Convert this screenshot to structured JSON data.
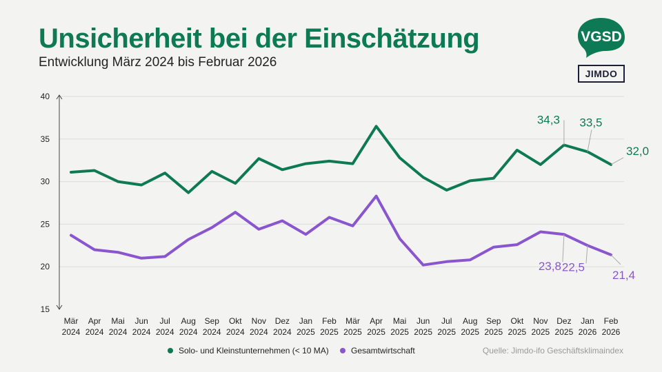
{
  "header": {
    "title": "Unsicherheit bei der Einschätzung",
    "subtitle": "Entwicklung März 2024 bis Februar 2026"
  },
  "logos": {
    "vgsd": "VGSD",
    "jimdo": "JIMDO"
  },
  "source": "Quelle: Jimdo-ifo Geschäftsklimaindex",
  "colors": {
    "green": "#0e7a55",
    "purple": "#8a56d0",
    "background": "#f3f3f1",
    "grid": "#dcdcda"
  },
  "chart_data": {
    "type": "line",
    "title": "Unsicherheit bei der Einschätzung",
    "ylim": [
      15,
      40
    ],
    "yticks": [
      15,
      20,
      25,
      30,
      35,
      40
    ],
    "grid": true,
    "legend": "bottom",
    "categories": [
      [
        "Mär",
        "2024"
      ],
      [
        "Apr",
        "2024"
      ],
      [
        "Mai",
        "2024"
      ],
      [
        "Jun",
        "2024"
      ],
      [
        "Jul",
        "2024"
      ],
      [
        "Aug",
        "2024"
      ],
      [
        "Sep",
        "2024"
      ],
      [
        "Okt",
        "2024"
      ],
      [
        "Nov",
        "2024"
      ],
      [
        "Dez",
        "2024"
      ],
      [
        "Jan",
        "2025"
      ],
      [
        "Feb",
        "2025"
      ],
      [
        "Mär",
        "2025"
      ],
      [
        "Apr",
        "2025"
      ],
      [
        "Mai",
        "2025"
      ],
      [
        "Jun",
        "2025"
      ],
      [
        "Jul",
        "2025"
      ],
      [
        "Aug",
        "2025"
      ],
      [
        "Sep",
        "2025"
      ],
      [
        "Okt",
        "2025"
      ],
      [
        "Nov",
        "2025"
      ],
      [
        "Dez",
        "2025"
      ],
      [
        "Jan",
        "2026"
      ],
      [
        "Feb",
        "2026"
      ]
    ],
    "series": [
      {
        "name": "Solo- und Kleinstunternehmen (< 10 MA)",
        "color": "#0e7a55",
        "values": [
          31.1,
          31.3,
          30.0,
          29.6,
          31.0,
          28.7,
          31.2,
          29.8,
          32.7,
          31.4,
          32.1,
          32.4,
          32.1,
          36.5,
          32.8,
          30.5,
          29.0,
          30.1,
          30.4,
          33.7,
          32.0,
          34.3,
          33.5,
          32.0
        ],
        "labels": [
          {
            "index": 21,
            "text": "34,3"
          },
          {
            "index": 22,
            "text": "33,5"
          },
          {
            "index": 23,
            "text": "32,0"
          }
        ]
      },
      {
        "name": "Gesamtwirtschaft",
        "color": "#8a56d0",
        "values": [
          23.7,
          22.0,
          21.7,
          21.0,
          21.2,
          23.2,
          24.6,
          26.4,
          24.4,
          25.4,
          23.8,
          25.8,
          24.8,
          28.3,
          23.3,
          20.2,
          20.6,
          20.8,
          22.3,
          22.6,
          24.1,
          23.8,
          22.5,
          21.4
        ],
        "labels": [
          {
            "index": 21,
            "text": "23,8"
          },
          {
            "index": 22,
            "text": "22,5"
          },
          {
            "index": 23,
            "text": "21,4"
          }
        ]
      }
    ]
  }
}
